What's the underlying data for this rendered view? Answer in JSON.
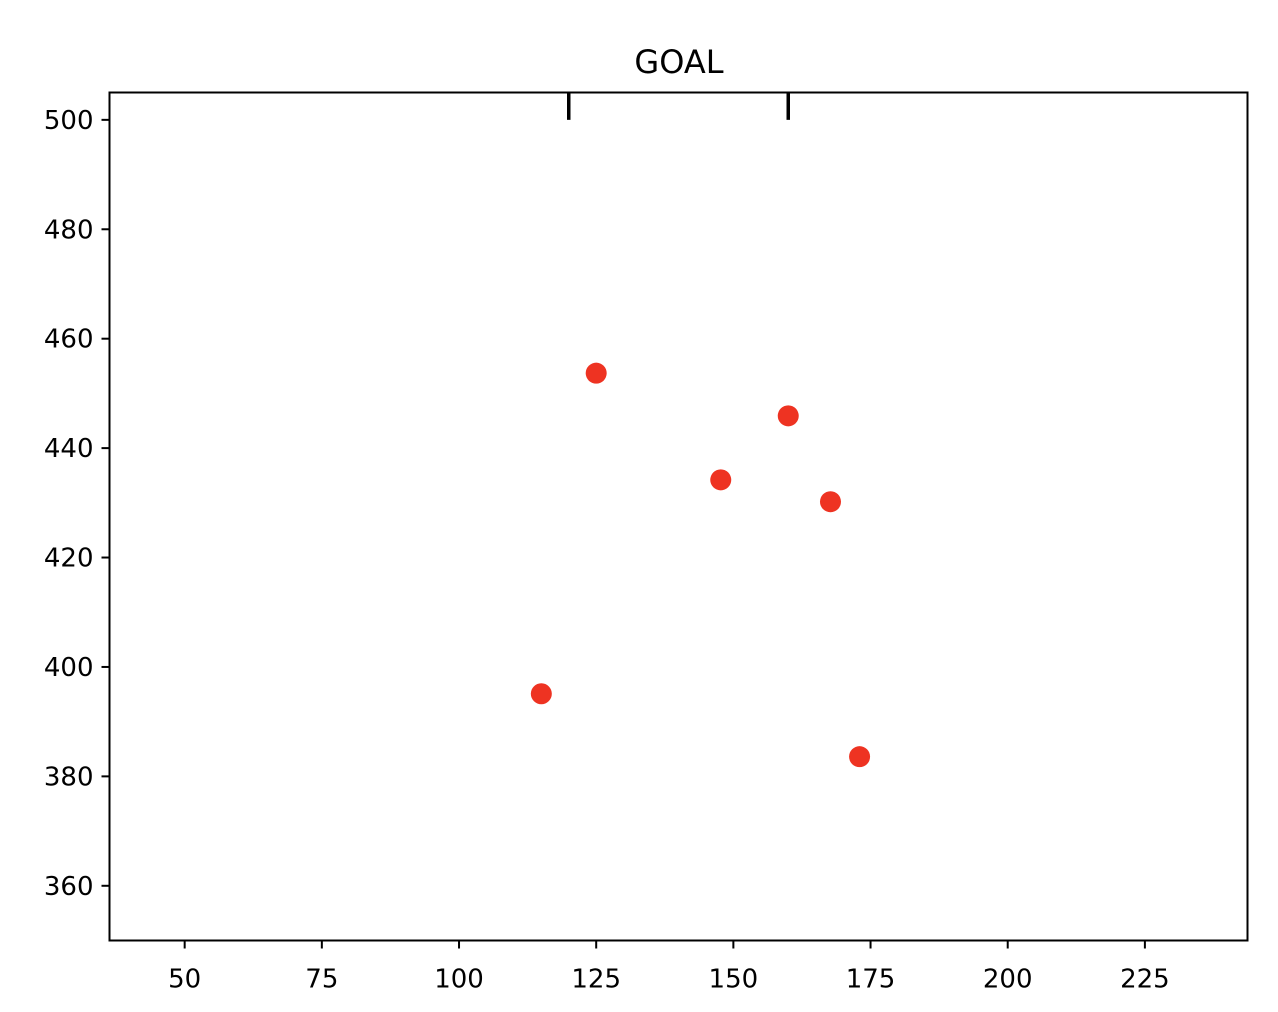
{
  "chart_data": {
    "type": "scatter",
    "title": "GOAL",
    "xlabel": "",
    "ylabel": "",
    "xlim": [
      36.3,
      243.7
    ],
    "ylim": [
      350,
      505
    ],
    "xticks": [
      50,
      75,
      100,
      125,
      150,
      175,
      200,
      225
    ],
    "yticks": [
      360,
      380,
      400,
      420,
      440,
      460,
      480,
      500
    ],
    "grid": false,
    "goal_posts": [
      120,
      160
    ],
    "goal_post_y": [
      500,
      505
    ],
    "series": [
      {
        "color": "#ee3322",
        "points": [
          {
            "x": 125,
            "y": 453.7
          },
          {
            "x": 160,
            "y": 445.9
          },
          {
            "x": 147.7,
            "y": 434.2
          },
          {
            "x": 167.7,
            "y": 430.2
          },
          {
            "x": 115,
            "y": 395.1
          },
          {
            "x": 173,
            "y": 383.6
          }
        ]
      }
    ]
  }
}
